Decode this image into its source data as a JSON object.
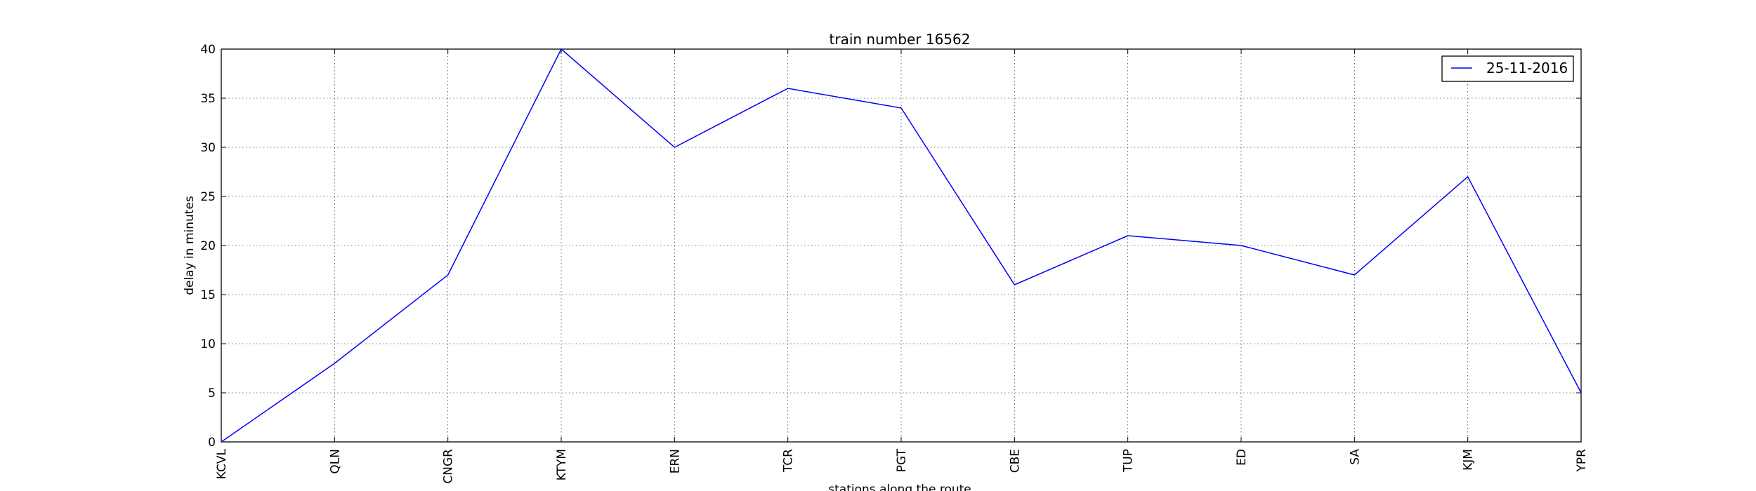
{
  "chart_data": {
    "type": "line",
    "title": "train number 16562",
    "xlabel": "stations along the route",
    "ylabel": "delay in minutes",
    "categories": [
      "KCVL",
      "QLN",
      "CNGR",
      "KTYM",
      "ERN",
      "TCR",
      "PGT",
      "CBE",
      "TUP",
      "ED",
      "SA",
      "KJM",
      "YPR"
    ],
    "series": [
      {
        "name": "25-11-2016",
        "values": [
          0,
          8,
          17,
          40,
          30,
          36,
          34,
          16,
          21,
          20,
          17,
          27,
          5
        ],
        "color": "#0000ff"
      }
    ],
    "ylim": [
      0,
      40
    ],
    "yticks": [
      "0",
      "5",
      "10",
      "15",
      "20",
      "25",
      "30",
      "35",
      "40"
    ],
    "grid": true,
    "legend_position": "top-right"
  }
}
